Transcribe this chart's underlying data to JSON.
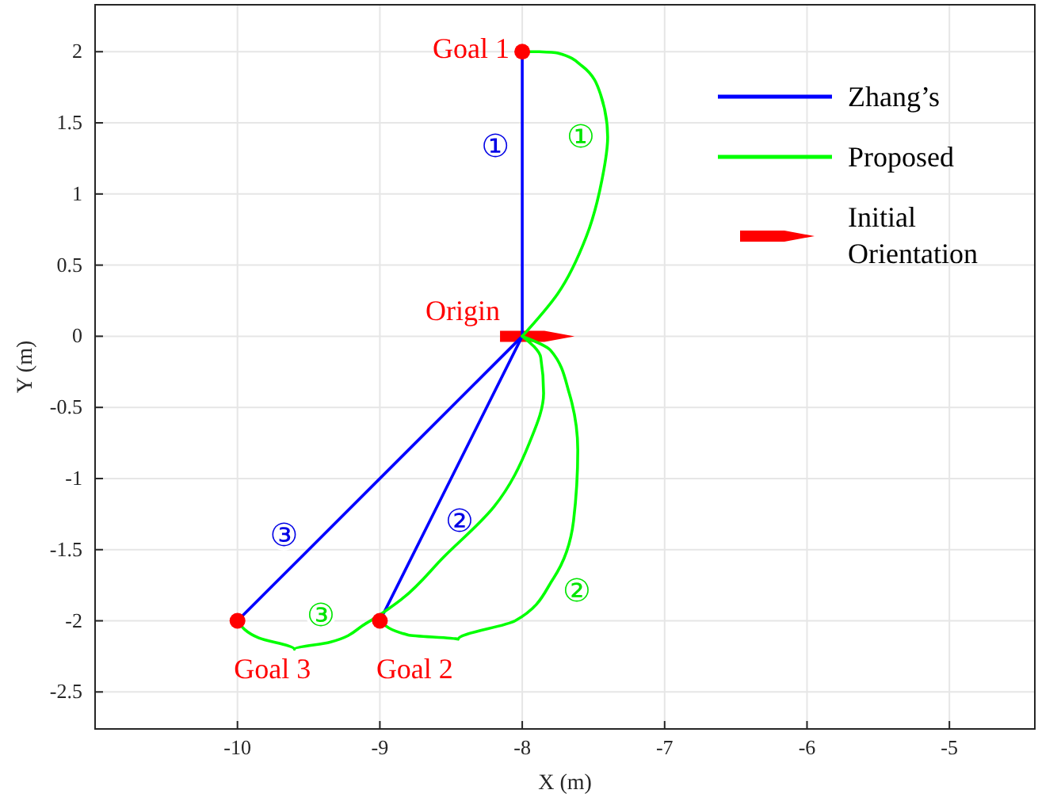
{
  "chart_data": {
    "type": "line",
    "xlabel": "X (m)",
    "ylabel": "Y (m)",
    "xlim": [
      -11,
      -4.4
    ],
    "ylim": [
      -2.76,
      2.33
    ],
    "xticks": [
      -10,
      -9,
      -8,
      -7,
      -6,
      -5
    ],
    "yticks": [
      -2.5,
      -2,
      -1.5,
      -1,
      -0.5,
      0,
      0.5,
      1,
      1.5,
      2
    ],
    "grid": true,
    "legend": "top right",
    "line_style": "solid",
    "series": [
      {
        "name": "Zhang’s",
        "color": "#0000ff",
        "x": [
          -8,
          -8,
          -8
        ],
        "values": [
          0,
          1.33,
          2
        ],
        "value_labels": [
          null,
          "①",
          null
        ]
      },
      {
        "color": "#0000ff",
        "x": [
          -8,
          -8.61,
          -9
        ],
        "values": [
          0,
          -1.22,
          -2
        ],
        "value_labels": [
          null,
          "②",
          null
        ]
      },
      {
        "color": "#0000ff",
        "x": [
          -10,
          -9.54,
          -8
        ],
        "values": [
          -2,
          -1.54,
          0
        ],
        "value_labels": [
          null,
          "③",
          null
        ]
      },
      {
        "name": "Proposed",
        "color": "#00ff00",
        "x": [
          -8,
          -7.75,
          -7.55,
          -7.44,
          -7.4,
          -7.45,
          -7.58,
          -7.75,
          -7.88,
          -8
        ],
        "values": [
          0,
          0.3,
          0.7,
          1.1,
          1.4,
          1.7,
          1.9,
          1.99,
          2,
          2
        ],
        "value_labels": [
          null,
          null,
          null,
          null,
          "①",
          null,
          null,
          null,
          null,
          null
        ]
      },
      {
        "color": "#00ff00",
        "x": [
          -8,
          -7.8,
          -7.67,
          -7.61,
          -7.64,
          -7.78,
          -8.05,
          -8.45,
          -8.8,
          -9
        ],
        "values": [
          0,
          -0.1,
          -0.4,
          -0.8,
          -1.3,
          -1.7,
          -2.0,
          -2.13,
          -2.1,
          -2
        ],
        "value_labels": [
          null,
          null,
          null,
          null,
          null,
          "②",
          null,
          null,
          null,
          null
        ]
      },
      {
        "color": "#00ff00",
        "x": [
          -10,
          -9.85,
          -9.6,
          -9.35,
          -9.1,
          -8.85,
          -8.55,
          -8.2,
          -7.95,
          -7.85,
          -7.87,
          -8
        ],
        "values": [
          -2,
          -2.12,
          -2.2,
          -2.15,
          -2.02,
          -1.85,
          -1.55,
          -1.2,
          -0.75,
          -0.4,
          -0.15,
          0
        ],
        "value_labels": [
          null,
          null,
          null,
          "③",
          null,
          null,
          null,
          null,
          null,
          null,
          null,
          null
        ]
      },
      {
        "type": "scatter",
        "marker": "circle",
        "color": "#ff0000",
        "x": [
          -8,
          -9,
          -10
        ],
        "values": [
          2,
          -2,
          -2
        ],
        "value_labels": [
          "Goal 1",
          "Goal 2",
          "Goal 3"
        ]
      }
    ],
    "annotations": [
      {
        "text": "Origin",
        "x": -8,
        "y": 0
      },
      "Initial Orientation"
    ]
  }
}
